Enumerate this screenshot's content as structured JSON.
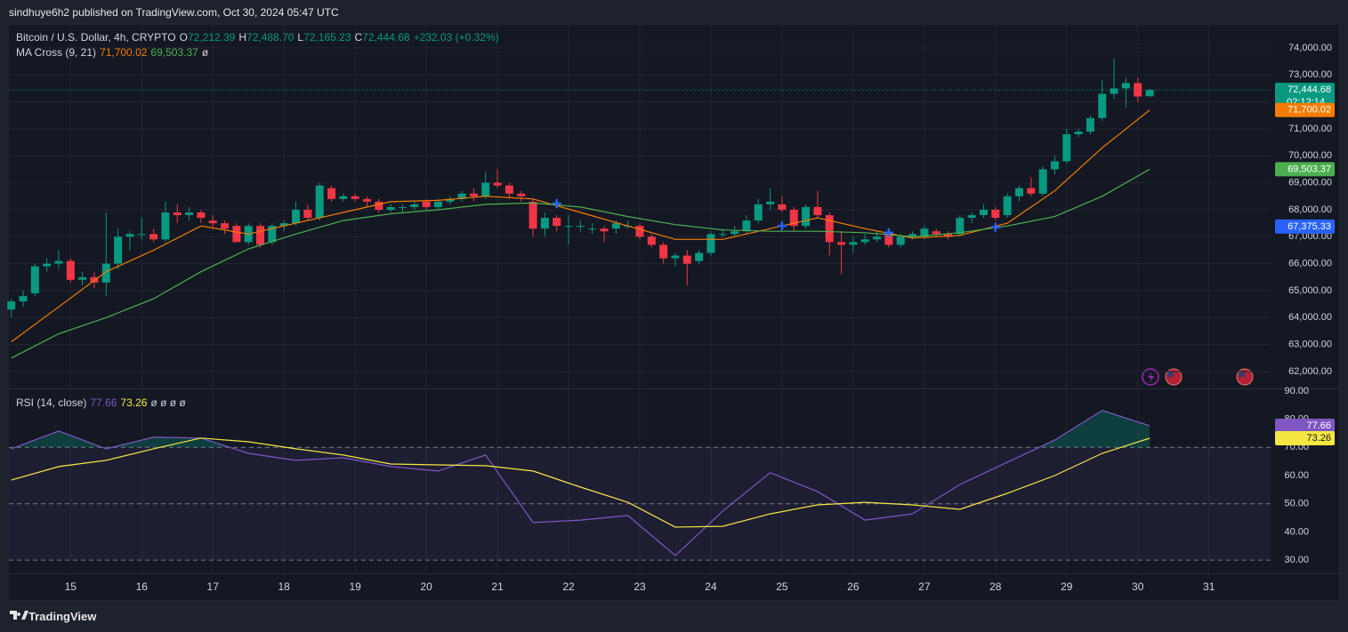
{
  "header": "sindhuye6h2 published on TradingView.com, Oct 30, 2024 05:47 UTC",
  "footer": "TradingView",
  "legend": {
    "symbol": "Bitcoin / U.S. Dollar, 4h, CRYPTO",
    "o_label": "O",
    "o": "72,212.39",
    "h_label": "H",
    "h": "72,488.70",
    "l_label": "L",
    "l": "72,165.23",
    "c_label": "C",
    "c": "72,444.68",
    "change": "+232.03 (+0.32%)"
  },
  "ma_legend": {
    "title": "MA Cross (9, 21)",
    "fast": "71,700.02",
    "slow": "69,503.37",
    "extra": "ø"
  },
  "rsi_legend": {
    "title": "RSI (14, close)",
    "rsi": "77.66",
    "ma": "73.26",
    "extra": "ø ø ø ø"
  },
  "chart_data": {
    "type": "candlestick",
    "up_color": "#089981",
    "down_color": "#f23645",
    "xlim": [
      -0.2,
      106.2
    ],
    "xticks": [
      {
        "value": 5,
        "label": "15"
      },
      {
        "value": 11,
        "label": "16"
      },
      {
        "value": 17,
        "label": "17"
      },
      {
        "value": 23,
        "label": "18"
      },
      {
        "value": 29,
        "label": "19"
      },
      {
        "value": 35,
        "label": "20"
      },
      {
        "value": 41,
        "label": "21"
      },
      {
        "value": 47,
        "label": "22"
      },
      {
        "value": 53,
        "label": "23"
      },
      {
        "value": 59,
        "label": "24"
      },
      {
        "value": 65,
        "label": "25"
      },
      {
        "value": 71,
        "label": "26"
      },
      {
        "value": 77,
        "label": "27"
      },
      {
        "value": 83,
        "label": "28"
      },
      {
        "value": 89,
        "label": "29"
      },
      {
        "value": 95,
        "label": "30"
      },
      {
        "value": 101,
        "label": "31"
      }
    ],
    "ylim": [
      61372,
      74857
    ],
    "yticks": [
      {
        "value": 62000,
        "label": "62,000.00"
      },
      {
        "value": 63000,
        "label": "63,000.00"
      },
      {
        "value": 64000,
        "label": "64,000.00"
      },
      {
        "value": 65000,
        "label": "65,000.00"
      },
      {
        "value": 66000,
        "label": "66,000.00"
      },
      {
        "value": 67000,
        "label": "67,000.00"
      },
      {
        "value": 68000,
        "label": "68,000.00"
      },
      {
        "value": 69000,
        "label": "69,000.00"
      },
      {
        "value": 70000,
        "label": "70,000.00"
      },
      {
        "value": 71000,
        "label": "71,000.00"
      },
      {
        "value": 72000,
        "label": "72,000.00"
      },
      {
        "value": 73000,
        "label": "73,000.00"
      },
      {
        "value": 74000,
        "label": "74,000.00"
      }
    ],
    "grid": true,
    "candles": [
      [
        64300,
        64700,
        64000,
        64600
      ],
      [
        64600,
        65000,
        64400,
        64800
      ],
      [
        64900,
        66000,
        64800,
        65900
      ],
      [
        65900,
        66200,
        65700,
        66000
      ],
      [
        66000,
        66500,
        65800,
        66100
      ],
      [
        66100,
        66200,
        65300,
        65400
      ],
      [
        65400,
        65700,
        65200,
        65500
      ],
      [
        65500,
        65700,
        65100,
        65300
      ],
      [
        65300,
        67900,
        64800,
        66000
      ],
      [
        66000,
        67300,
        65800,
        67000
      ],
      [
        67000,
        67200,
        66500,
        67100
      ],
      [
        67100,
        67700,
        66900,
        67100
      ],
      [
        67100,
        67300,
        66800,
        66900
      ],
      [
        66900,
        68300,
        66800,
        67900
      ],
      [
        67900,
        68200,
        67500,
        67800
      ],
      [
        67800,
        68100,
        67600,
        67900
      ],
      [
        67900,
        68000,
        67500,
        67700
      ],
      [
        67600,
        67800,
        67300,
        67500
      ],
      [
        67500,
        67600,
        67100,
        67300
      ],
      [
        67400,
        67500,
        66800,
        66800
      ],
      [
        66800,
        67500,
        66700,
        67400
      ],
      [
        67400,
        67500,
        66600,
        66700
      ],
      [
        66800,
        67500,
        66700,
        67400
      ],
      [
        67400,
        67600,
        67200,
        67500
      ],
      [
        67500,
        68300,
        67400,
        68000
      ],
      [
        68000,
        68200,
        67600,
        67700
      ],
      [
        67700,
        69000,
        67600,
        68900
      ],
      [
        68800,
        68900,
        68300,
        68400
      ],
      [
        68400,
        68600,
        68300,
        68500
      ],
      [
        68500,
        68600,
        68300,
        68400
      ],
      [
        68400,
        68500,
        68100,
        68300
      ],
      [
        68300,
        68400,
        67900,
        68000
      ],
      [
        68000,
        68200,
        67900,
        68100
      ],
      [
        68100,
        68200,
        67900,
        68100
      ],
      [
        68100,
        68300,
        68000,
        68200
      ],
      [
        68300,
        68400,
        68000,
        68100
      ],
      [
        68100,
        68400,
        68000,
        68300
      ],
      [
        68300,
        68500,
        68200,
        68400
      ],
      [
        68400,
        68700,
        68300,
        68600
      ],
      [
        68600,
        68800,
        68300,
        68500
      ],
      [
        68500,
        69400,
        68400,
        69000
      ],
      [
        69000,
        69500,
        68800,
        68900
      ],
      [
        68900,
        69000,
        68400,
        68600
      ],
      [
        68600,
        68700,
        68300,
        68500
      ],
      [
        68300,
        68400,
        67000,
        67300
      ],
      [
        67300,
        67900,
        67000,
        67700
      ],
      [
        67700,
        67800,
        67200,
        67400
      ],
      [
        67400,
        67800,
        66700,
        67400
      ],
      [
        67400,
        67600,
        67200,
        67400
      ],
      [
        67300,
        67500,
        67100,
        67300
      ],
      [
        67300,
        67400,
        66800,
        67200
      ],
      [
        67300,
        67600,
        67100,
        67500
      ],
      [
        67400,
        67600,
        67300,
        67400
      ],
      [
        67400,
        67500,
        66900,
        67000
      ],
      [
        67000,
        67100,
        66600,
        66700
      ],
      [
        66700,
        66800,
        66000,
        66200
      ],
      [
        66200,
        66400,
        65900,
        66300
      ],
      [
        66300,
        66500,
        65200,
        66000
      ],
      [
        66100,
        66500,
        66000,
        66400
      ],
      [
        66400,
        67200,
        66300,
        67100
      ],
      [
        67100,
        67300,
        67000,
        67100
      ],
      [
        67100,
        67400,
        67000,
        67200
      ],
      [
        67200,
        67800,
        67100,
        67600
      ],
      [
        67600,
        68400,
        67500,
        68200
      ],
      [
        68200,
        68800,
        68000,
        68300
      ],
      [
        68200,
        68500,
        67900,
        68000
      ],
      [
        68000,
        68100,
        67200,
        67400
      ],
      [
        67400,
        68200,
        67300,
        68100
      ],
      [
        68100,
        68700,
        67700,
        67800
      ],
      [
        67800,
        67900,
        66300,
        66800
      ],
      [
        66800,
        67200,
        65600,
        66700
      ],
      [
        66700,
        67000,
        66400,
        66800
      ],
      [
        66800,
        67100,
        66700,
        66900
      ],
      [
        66900,
        67200,
        66800,
        67000
      ],
      [
        67100,
        67300,
        66600,
        66700
      ],
      [
        66700,
        67100,
        66600,
        67000
      ],
      [
        67000,
        67200,
        66900,
        67100
      ],
      [
        67000,
        67400,
        66900,
        67300
      ],
      [
        67200,
        67300,
        67000,
        67100
      ],
      [
        67100,
        67200,
        66900,
        67000
      ],
      [
        67100,
        67800,
        67000,
        67700
      ],
      [
        67700,
        67900,
        67500,
        67800
      ],
      [
        67800,
        68200,
        67700,
        68000
      ],
      [
        68000,
        68100,
        67600,
        67700
      ],
      [
        67800,
        68600,
        67700,
        68500
      ],
      [
        68500,
        68900,
        68300,
        68800
      ],
      [
        68800,
        69200,
        68500,
        68600
      ],
      [
        68600,
        69600,
        68500,
        69500
      ],
      [
        69500,
        70000,
        69300,
        69800
      ],
      [
        69800,
        71000,
        69700,
        70800
      ],
      [
        70800,
        71000,
        70700,
        70900
      ],
      [
        70900,
        71500,
        70800,
        71400
      ],
      [
        71400,
        72800,
        71300,
        72300
      ],
      [
        72300,
        73600,
        72100,
        72500
      ],
      [
        72500,
        72900,
        71800,
        72700
      ],
      [
        72700,
        72900,
        72000,
        72200
      ],
      [
        72212.39,
        72488.7,
        72165.23,
        72444.68
      ]
    ],
    "line_x": [
      0,
      4,
      8,
      12,
      16,
      20,
      24,
      28,
      32,
      36,
      40,
      44,
      48,
      52,
      56,
      60,
      64,
      68,
      72,
      76,
      80,
      84,
      88,
      92,
      96
    ],
    "ma_lines": [
      {
        "color": "#f57c00",
        "values": [
          63100,
          64400,
          65700,
          66500,
          67400,
          67100,
          67500,
          67900,
          68300,
          68350,
          68500,
          68400,
          67900,
          67400,
          66900,
          66900,
          67300,
          67700,
          67300,
          66950,
          67050,
          67500,
          68700,
          70300,
          71700.02
        ]
      },
      {
        "color": "#4caf50",
        "values": [
          62500,
          63400,
          64000,
          64700,
          65700,
          66550,
          67100,
          67600,
          67850,
          68000,
          68200,
          68250,
          68100,
          67750,
          67450,
          67250,
          67200,
          67200,
          67150,
          67000,
          67150,
          67400,
          67750,
          68500,
          69503.37
        ]
      }
    ],
    "cross_markers": {
      "color": "#2962ff",
      "x": [
        46,
        65,
        74,
        83
      ],
      "values": [
        68230,
        67400,
        67150,
        67350
      ]
    },
    "price_badges": [
      {
        "value": 72444.68,
        "label": "72,444.68",
        "sub": "02:12:14",
        "color": "#089981"
      },
      {
        "value": 71700.02,
        "label": "71,700.02",
        "color": "#f57c00"
      },
      {
        "value": 69503.37,
        "label": "69,503.37",
        "color": "#4caf50"
      },
      {
        "value": 67375.33,
        "label": "67,375.33",
        "color": "#2962ff"
      }
    ],
    "rsi": {
      "ylim": [
        25.3,
        90.6
      ],
      "yticks": [
        {
          "value": 30,
          "label": "30.00"
        },
        {
          "value": 40,
          "label": "40.00"
        },
        {
          "value": 50,
          "label": "50.00"
        },
        {
          "value": 60,
          "label": "60.00"
        },
        {
          "value": 70,
          "label": "70.00"
        },
        {
          "value": 80,
          "label": "80.00"
        },
        {
          "value": 90,
          "label": "90.00"
        }
      ],
      "band": [
        30,
        70
      ],
      "levels": [
        30,
        50,
        70
      ],
      "line_color": "#7e57c2",
      "values": [
        69.5,
        75.8,
        69.5,
        73.6,
        73.3,
        67.9,
        65.4,
        66.3,
        63.2,
        61.6,
        67.3,
        43.3,
        44.2,
        45.8,
        31.6,
        47.4,
        61,
        54.3,
        44.2,
        46.4,
        56.8,
        64.7,
        72.6,
        83.1,
        77.66
      ],
      "ma_color": "#f5e642",
      "ma_values": [
        58.4,
        63.2,
        65.4,
        69.5,
        73.3,
        72,
        69.5,
        67.3,
        64.1,
        63.8,
        63.5,
        61.6,
        55.9,
        50.5,
        41.7,
        42,
        46.4,
        49.6,
        50.5,
        49.6,
        48,
        53.7,
        60,
        67.9,
        73.26
      ],
      "badges": [
        {
          "value": 77.66,
          "label": "77.66",
          "color": "#7e57c2"
        },
        {
          "value": 73.26,
          "label": "73.26",
          "color": "#f5e642"
        }
      ]
    }
  }
}
